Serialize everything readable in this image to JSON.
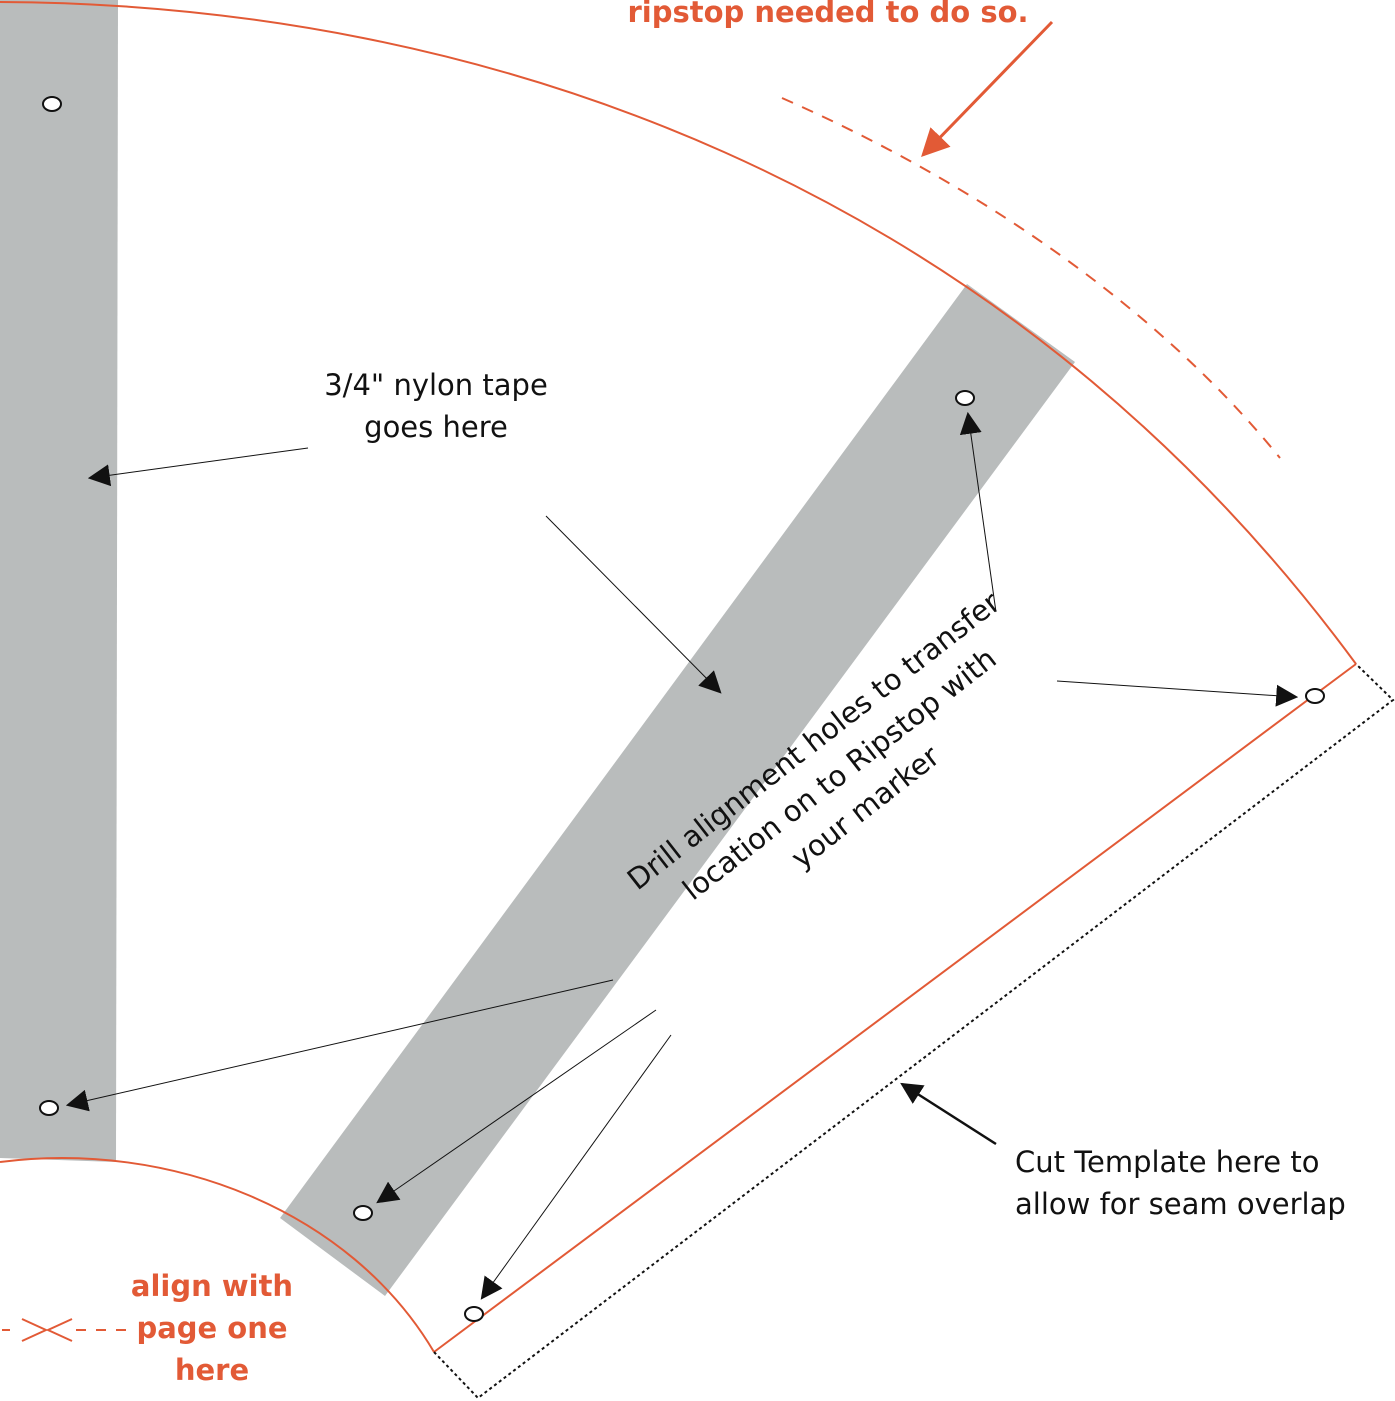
{
  "labels": {
    "top_note": "ripstop needed to do so.",
    "tape_line1": "3/4\" nylon tape",
    "tape_line2": "goes here",
    "drill_line1": "Drill alignment holes to transfer",
    "drill_line2": "location on to Ripstop with",
    "drill_line3": "your marker",
    "cut_line1": "Cut Template here to",
    "cut_line2": "allow for seam overlap",
    "align_line1": "align with",
    "align_line2": "page one",
    "align_line3": "here"
  },
  "colors": {
    "accent": "#e25a36",
    "tape": "#b9bcbc",
    "ink": "#111111"
  }
}
